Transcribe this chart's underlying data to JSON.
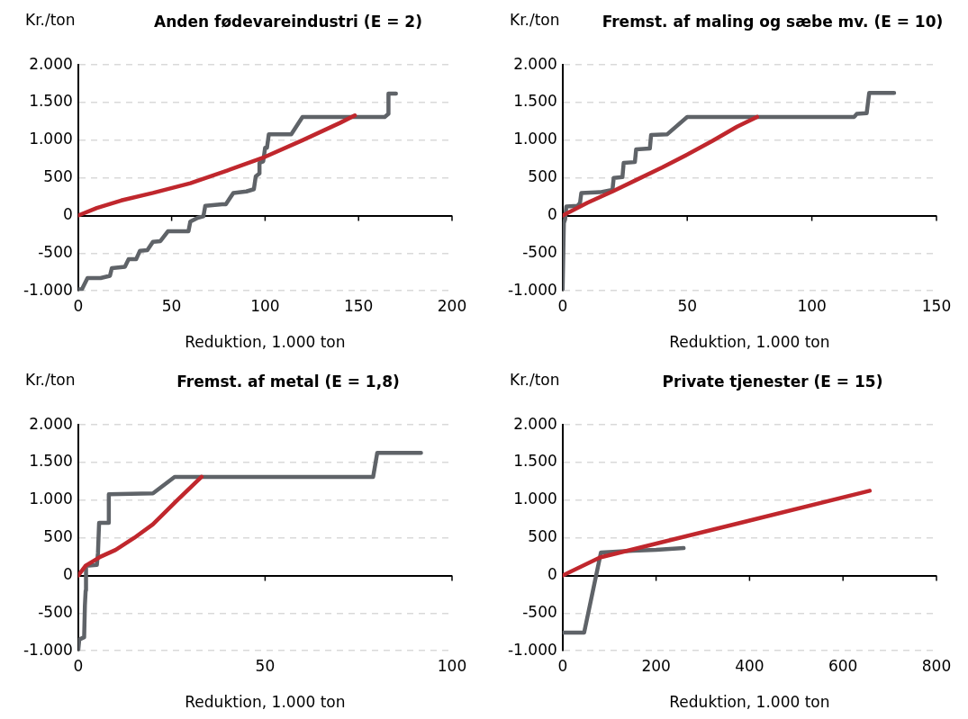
{
  "chart_data": [
    {
      "type": "line",
      "title": "Anden fødevareindustri (E = 2)",
      "xlabel": "Reduktion, 1.000 ton",
      "ylabel": "Kr./ton",
      "series": [
        {
          "color": "#c0272d",
          "x": [
            0,
            10,
            23,
            40,
            60,
            80,
            100,
            120,
            140,
            148
          ],
          "values": [
            0,
            100,
            200,
            300,
            430,
            600,
            780,
            1000,
            1230,
            1330
          ]
        },
        {
          "color": "#5f6368",
          "x": [
            0,
            2,
            5,
            12,
            17,
            18,
            25,
            27,
            31,
            33,
            37,
            40,
            44,
            48,
            59,
            60,
            64,
            67,
            68,
            77,
            79,
            83,
            90,
            94,
            95,
            97,
            97,
            99,
            100,
            101,
            102,
            114,
            120,
            164,
            166,
            166,
            170
          ],
          "values": [
            -980,
            -980,
            -830,
            -830,
            -800,
            -700,
            -680,
            -580,
            -580,
            -470,
            -460,
            -350,
            -340,
            -210,
            -210,
            -80,
            -30,
            -10,
            130,
            150,
            150,
            300,
            320,
            350,
            520,
            560,
            700,
            720,
            900,
            900,
            1080,
            1080,
            1310,
            1310,
            1350,
            1620,
            1620
          ]
        }
      ],
      "xlim": [
        0,
        200
      ],
      "xticks": [
        0,
        50,
        100,
        150,
        200
      ],
      "ylim": [
        -1000,
        2000
      ],
      "yticks": [
        {
          "value": -1000,
          "label": "-1.000"
        },
        -500,
        0,
        500,
        {
          "value": 1000,
          "label": "1.000"
        },
        {
          "value": 1500,
          "label": "1.500"
        },
        {
          "value": 2000,
          "label": "2.000"
        }
      ],
      "grid": "y"
    },
    {
      "type": "line",
      "title": "Fremst. af maling og sæbe mv. (E = 10)",
      "xlabel": "Reduktion, 1.000 ton",
      "ylabel": "Kr./ton",
      "series": [
        {
          "color": "#c0272d",
          "x": [
            0,
            10,
            20,
            30,
            40,
            50,
            60,
            70,
            78
          ],
          "values": [
            0,
            170,
            320,
            480,
            640,
            810,
            990,
            1180,
            1310
          ]
        },
        {
          "color": "#5f6368",
          "x": [
            0,
            0.5,
            1,
            1.5,
            6,
            7,
            7.5,
            15,
            20,
            20.5,
            24,
            24.5,
            29,
            29.5,
            35,
            35.5,
            42,
            50,
            117,
            118,
            122,
            123,
            133
          ],
          "values": [
            -980,
            -100,
            -50,
            120,
            130,
            170,
            300,
            310,
            340,
            500,
            510,
            700,
            710,
            880,
            890,
            1070,
            1080,
            1310,
            1310,
            1350,
            1360,
            1630,
            1630
          ]
        }
      ],
      "xlim": [
        0,
        150
      ],
      "xticks": [
        0,
        50,
        100,
        150
      ],
      "ylim": [
        -1000,
        2000
      ],
      "yticks": [
        {
          "value": -1000,
          "label": "-1.000"
        },
        -500,
        0,
        500,
        {
          "value": 1000,
          "label": "1.000"
        },
        {
          "value": 1500,
          "label": "1.500"
        },
        {
          "value": 2000,
          "label": "2.000"
        }
      ],
      "grid": "y"
    },
    {
      "type": "line",
      "title": "Fremst. af metal (E = 1,8)",
      "xlabel": "Reduktion, 1.000 ton",
      "ylabel": "Kr./ton",
      "series": [
        {
          "color": "#c0272d",
          "x": [
            0,
            2,
            6,
            10,
            15,
            20,
            26.5,
            33
          ],
          "values": [
            0,
            130,
            250,
            340,
            500,
            680,
            1000,
            1310
          ]
        },
        {
          "color": "#5f6368",
          "x": [
            0,
            0.3,
            1.6,
            1.8,
            2,
            2.1,
            5,
            5.3,
            5.6,
            8,
            8.2,
            20,
            25.8,
            78.9,
            80,
            91.7
          ],
          "values": [
            -1000,
            -850,
            -820,
            -400,
            -200,
            130,
            140,
            300,
            700,
            700,
            1080,
            1090,
            1310,
            1310,
            1630,
            1630
          ]
        }
      ],
      "xlim": [
        0,
        100
      ],
      "xticks": [
        0,
        50,
        100
      ],
      "ylim": [
        -1000,
        2000
      ],
      "yticks": [
        {
          "value": -1000,
          "label": "-1.000"
        },
        -500,
        0,
        500,
        {
          "value": 1000,
          "label": "1.000"
        },
        {
          "value": 1500,
          "label": "1.500"
        },
        {
          "value": 2000,
          "label": "2.000"
        }
      ],
      "grid": "y"
    },
    {
      "type": "line",
      "title": "Private tjenester (E = 15)",
      "xlabel": "Reduktion, 1.000 ton",
      "ylabel": "Kr./ton",
      "series": [
        {
          "color": "#c0272d",
          "x": [
            0,
            80,
            400,
            657
          ],
          "values": [
            0,
            240,
            730,
            1125
          ]
        },
        {
          "color": "#5f6368",
          "x": [
            0,
            46,
            82,
            150,
            200,
            259
          ],
          "values": [
            -760,
            -760,
            305,
            330,
            340,
            364
          ]
        }
      ],
      "xlim": [
        0,
        800
      ],
      "xticks": [
        0,
        200,
        400,
        600,
        800
      ],
      "ylim": [
        -1000,
        2000
      ],
      "yticks": [
        {
          "value": -1000,
          "label": "-1.000"
        },
        -500,
        0,
        500,
        {
          "value": 1000,
          "label": "1.000"
        },
        {
          "value": 1500,
          "label": "1.500"
        },
        {
          "value": 2000,
          "label": "2.000"
        }
      ],
      "grid": "y"
    }
  ]
}
